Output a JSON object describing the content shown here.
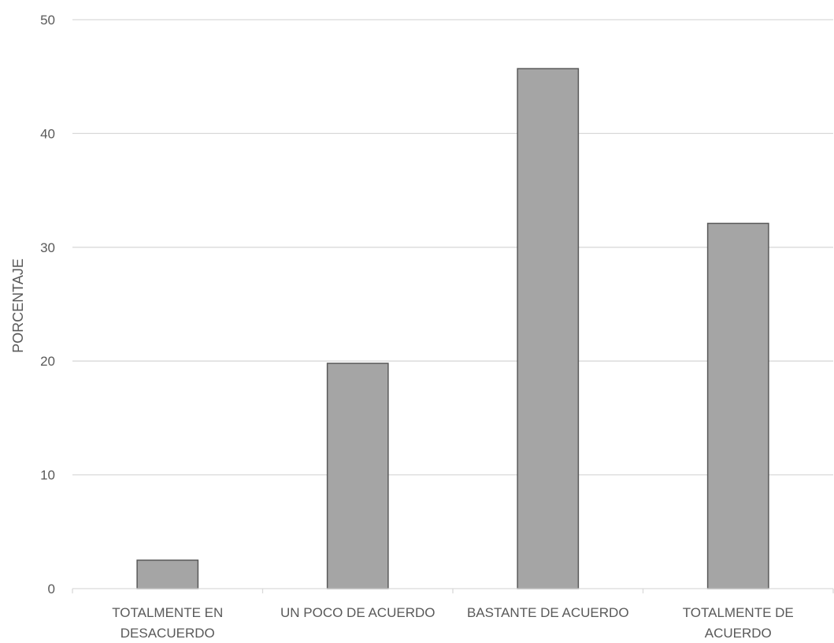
{
  "chart_data": {
    "type": "bar",
    "ylabel": "PORCENTAJE",
    "xlabel": "",
    "ylim": [
      0,
      50
    ],
    "yticks": [
      0,
      10,
      20,
      30,
      40,
      50
    ],
    "grid": true,
    "categories": [
      [
        "TOTALMENTE EN",
        "DESACUERDO"
      ],
      [
        "UN POCO DE ACUERDO"
      ],
      [
        "BASTANTE DE ACUERDO"
      ],
      [
        "TOTALMENTE DE",
        "ACUERDO"
      ]
    ],
    "values": [
      2.5,
      19.8,
      45.7,
      32.1
    ],
    "colors": {
      "bar_fill": "#a5a5a5",
      "bar_stroke": "#595959",
      "grid": "#d9d9d9",
      "text": "#595959"
    }
  }
}
